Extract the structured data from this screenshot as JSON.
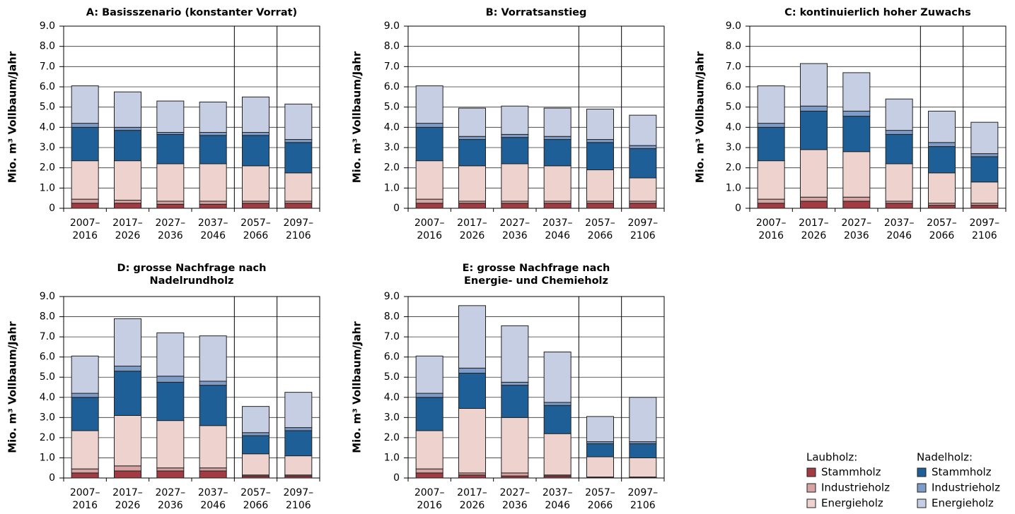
{
  "chart_data": [
    {
      "type": "bar",
      "stacked": true,
      "grid": true,
      "title": "A: Basisszenario (konstanter Vorrat)",
      "y_label": "Mio. m³ Vollbaum/Jahr",
      "categories": [
        [
          "2007–",
          "2016"
        ],
        [
          "2017–",
          "2026"
        ],
        [
          "2027–",
          "2036"
        ],
        [
          "2037–",
          "2046"
        ],
        [
          "2057–",
          "2066"
        ],
        [
          "2097–",
          "2106"
        ]
      ],
      "ylim": [
        0,
        9
      ],
      "yticks": [
        0,
        {
          "value": 1,
          "label": "1.0"
        },
        {
          "value": 2,
          "label": "2.0"
        },
        {
          "value": 3,
          "label": "3.0"
        },
        {
          "value": 4,
          "label": "4.0"
        },
        {
          "value": 5,
          "label": "5.0"
        },
        {
          "value": 6,
          "label": "6.0"
        },
        {
          "value": 7,
          "label": "7.0"
        },
        {
          "value": 8,
          "label": "8.0"
        },
        {
          "value": 9,
          "label": "9.0"
        }
      ],
      "series": [
        {
          "name": "Stammholz",
          "color": "#a33b42",
          "values": [
            0.25,
            0.25,
            0.2,
            0.2,
            0.25,
            0.25
          ]
        },
        {
          "name": "Industrieholz",
          "color": "#d7a3a3",
          "values": [
            0.2,
            0.15,
            0.15,
            0.15,
            0.1,
            0.1
          ]
        },
        {
          "name": "Energieholz",
          "color": "#edd2cd",
          "values": [
            1.9,
            1.95,
            1.85,
            1.85,
            1.75,
            1.4
          ]
        },
        {
          "name": "Stammholz",
          "color": "#1f5f97",
          "values": [
            1.65,
            1.5,
            1.45,
            1.4,
            1.5,
            1.5
          ]
        },
        {
          "name": "Industrieholz",
          "color": "#7d9cc8",
          "values": [
            0.2,
            0.15,
            0.1,
            0.15,
            0.15,
            0.15
          ]
        },
        {
          "name": "Energieholz",
          "color": "#c6cee4",
          "values": [
            1.85,
            1.75,
            1.55,
            1.5,
            1.75,
            1.75
          ]
        }
      ]
    },
    {
      "type": "bar",
      "stacked": true,
      "grid": true,
      "title": "B: Vorratsanstieg",
      "y_label": "Mio. m³ Vollbaum/Jahr",
      "categories": [
        [
          "2007–",
          "2016"
        ],
        [
          "2017–",
          "2026"
        ],
        [
          "2027–",
          "2036"
        ],
        [
          "2037–",
          "2046"
        ],
        [
          "2057–",
          "2066"
        ],
        [
          "2097–",
          "2106"
        ]
      ],
      "ylim": [
        0,
        9
      ],
      "yticks": [
        0,
        {
          "value": 1,
          "label": "1.0"
        },
        {
          "value": 2,
          "label": "2.0"
        },
        {
          "value": 3,
          "label": "3.0"
        },
        {
          "value": 4,
          "label": "4.0"
        },
        {
          "value": 5,
          "label": "5.0"
        },
        {
          "value": 6,
          "label": "6.0"
        },
        {
          "value": 7,
          "label": "7.0"
        },
        {
          "value": 8,
          "label": "8.0"
        },
        {
          "value": 9,
          "label": "9.0"
        }
      ],
      "series": [
        {
          "name": "Stammholz",
          "color": "#a33b42",
          "values": [
            0.25,
            0.25,
            0.25,
            0.25,
            0.25,
            0.25
          ]
        },
        {
          "name": "Industrieholz",
          "color": "#d7a3a3",
          "values": [
            0.2,
            0.1,
            0.1,
            0.1,
            0.1,
            0.1
          ]
        },
        {
          "name": "Energieholz",
          "color": "#edd2cd",
          "values": [
            1.9,
            1.75,
            1.85,
            1.75,
            1.55,
            1.15
          ]
        },
        {
          "name": "Stammholz",
          "color": "#1f5f97",
          "values": [
            1.65,
            1.3,
            1.3,
            1.3,
            1.35,
            1.45
          ]
        },
        {
          "name": "Industrieholz",
          "color": "#7d9cc8",
          "values": [
            0.2,
            0.15,
            0.15,
            0.15,
            0.15,
            0.15
          ]
        },
        {
          "name": "Energieholz",
          "color": "#c6cee4",
          "values": [
            1.85,
            1.4,
            1.4,
            1.4,
            1.5,
            1.5
          ]
        }
      ]
    },
    {
      "type": "bar",
      "stacked": true,
      "grid": true,
      "title": "C: kontinuierlich hoher Zuwachs",
      "y_label": "Mio. m³ Vollbaum/Jahr",
      "categories": [
        [
          "2007–",
          "2016"
        ],
        [
          "2017–",
          "2026"
        ],
        [
          "2027–",
          "2036"
        ],
        [
          "2037–",
          "2046"
        ],
        [
          "2057–",
          "2066"
        ],
        [
          "2097–",
          "2106"
        ]
      ],
      "ylim": [
        0,
        9
      ],
      "yticks": [
        0,
        {
          "value": 1,
          "label": "1.0"
        },
        {
          "value": 2,
          "label": "2.0"
        },
        {
          "value": 3,
          "label": "3.0"
        },
        {
          "value": 4,
          "label": "4.0"
        },
        {
          "value": 5,
          "label": "5.0"
        },
        {
          "value": 6,
          "label": "6.0"
        },
        {
          "value": 7,
          "label": "7.0"
        },
        {
          "value": 8,
          "label": "8.0"
        },
        {
          "value": 9,
          "label": "9.0"
        }
      ],
      "series": [
        {
          "name": "Stammholz",
          "color": "#a33b42",
          "values": [
            0.25,
            0.35,
            0.35,
            0.25,
            0.15,
            0.15
          ]
        },
        {
          "name": "Industrieholz",
          "color": "#d7a3a3",
          "values": [
            0.2,
            0.2,
            0.2,
            0.1,
            0.1,
            0.1
          ]
        },
        {
          "name": "Energieholz",
          "color": "#edd2cd",
          "values": [
            1.9,
            2.35,
            2.25,
            1.85,
            1.5,
            1.05
          ]
        },
        {
          "name": "Stammholz",
          "color": "#1f5f97",
          "values": [
            1.65,
            1.9,
            1.75,
            1.45,
            1.3,
            1.25
          ]
        },
        {
          "name": "Industrieholz",
          "color": "#7d9cc8",
          "values": [
            0.2,
            0.25,
            0.25,
            0.2,
            0.2,
            0.15
          ]
        },
        {
          "name": "Energieholz",
          "color": "#c6cee4",
          "values": [
            1.85,
            2.1,
            1.9,
            1.55,
            1.55,
            1.55
          ]
        }
      ]
    },
    {
      "type": "bar",
      "stacked": true,
      "grid": true,
      "title": [
        "D: grosse Nachfrage nach",
        "Nadelrundholz"
      ],
      "y_label": "Mio. m³ Vollbaum/Jahr",
      "categories": [
        [
          "2007–",
          "2016"
        ],
        [
          "2017–",
          "2026"
        ],
        [
          "2027–",
          "2036"
        ],
        [
          "2037–",
          "2046"
        ],
        [
          "2057–",
          "2066"
        ],
        [
          "2097–",
          "2106"
        ]
      ],
      "ylim": [
        0,
        9
      ],
      "yticks": [
        0,
        {
          "value": 1,
          "label": "1.0"
        },
        {
          "value": 2,
          "label": "2.0"
        },
        {
          "value": 3,
          "label": "3.0"
        },
        {
          "value": 4,
          "label": "4.0"
        },
        {
          "value": 5,
          "label": "5.0"
        },
        {
          "value": 6,
          "label": "6.0"
        },
        {
          "value": 7,
          "label": "7.0"
        },
        {
          "value": 8,
          "label": "8.0"
        },
        {
          "value": 9,
          "label": "9.0"
        }
      ],
      "series": [
        {
          "name": "Stammholz",
          "color": "#a33b42",
          "values": [
            0.25,
            0.35,
            0.35,
            0.35,
            0.1,
            0.1
          ]
        },
        {
          "name": "Industrieholz",
          "color": "#d7a3a3",
          "values": [
            0.2,
            0.25,
            0.15,
            0.15,
            0.05,
            0.05
          ]
        },
        {
          "name": "Energieholz",
          "color": "#edd2cd",
          "values": [
            1.9,
            2.5,
            2.35,
            2.1,
            1.05,
            0.95
          ]
        },
        {
          "name": "Stammholz",
          "color": "#1f5f97",
          "values": [
            1.65,
            2.2,
            1.9,
            2.0,
            0.9,
            1.25
          ]
        },
        {
          "name": "Industrieholz",
          "color": "#7d9cc8",
          "values": [
            0.2,
            0.25,
            0.3,
            0.2,
            0.15,
            0.15
          ]
        },
        {
          "name": "Energieholz",
          "color": "#c6cee4",
          "values": [
            1.85,
            2.35,
            2.15,
            2.25,
            1.3,
            1.75
          ]
        }
      ]
    },
    {
      "type": "bar",
      "stacked": true,
      "grid": true,
      "title": [
        "E: grosse Nachfrage nach",
        "Energie- und Chemieholz"
      ],
      "y_label": "Mio. m³ Vollbaum/Jahr",
      "categories": [
        [
          "2007–",
          "2016"
        ],
        [
          "2017–",
          "2026"
        ],
        [
          "2027–",
          "2036"
        ],
        [
          "2037–",
          "2046"
        ],
        [
          "2057–",
          "2066"
        ],
        [
          "2097–",
          "2106"
        ]
      ],
      "ylim": [
        0,
        9
      ],
      "yticks": [
        0,
        {
          "value": 1,
          "label": "1.0"
        },
        {
          "value": 2,
          "label": "2.0"
        },
        {
          "value": 3,
          "label": "3.0"
        },
        {
          "value": 4,
          "label": "4.0"
        },
        {
          "value": 5,
          "label": "5.0"
        },
        {
          "value": 6,
          "label": "6.0"
        },
        {
          "value": 7,
          "label": "7.0"
        },
        {
          "value": 8,
          "label": "8.0"
        },
        {
          "value": 9,
          "label": "9.0"
        }
      ],
      "series": [
        {
          "name": "Stammholz",
          "color": "#a33b42",
          "values": [
            0.25,
            0.15,
            0.1,
            0.1,
            0.02,
            0.02
          ]
        },
        {
          "name": "Industrieholz",
          "color": "#d7a3a3",
          "values": [
            0.2,
            0.1,
            0.15,
            0.05,
            0.03,
            0.03
          ]
        },
        {
          "name": "Energieholz",
          "color": "#edd2cd",
          "values": [
            1.9,
            3.2,
            2.75,
            2.05,
            1.0,
            0.95
          ]
        },
        {
          "name": "Stammholz",
          "color": "#1f5f97",
          "values": [
            1.65,
            1.75,
            1.6,
            1.4,
            0.65,
            0.7
          ]
        },
        {
          "name": "Industrieholz",
          "color": "#7d9cc8",
          "values": [
            0.2,
            0.25,
            0.15,
            0.15,
            0.1,
            0.1
          ]
        },
        {
          "name": "Energieholz",
          "color": "#c6cee4",
          "values": [
            1.85,
            3.1,
            2.8,
            2.5,
            1.25,
            2.2
          ]
        }
      ]
    }
  ],
  "legend": {
    "groups": [
      "Laubholz:",
      "Nadelholz:"
    ]
  }
}
